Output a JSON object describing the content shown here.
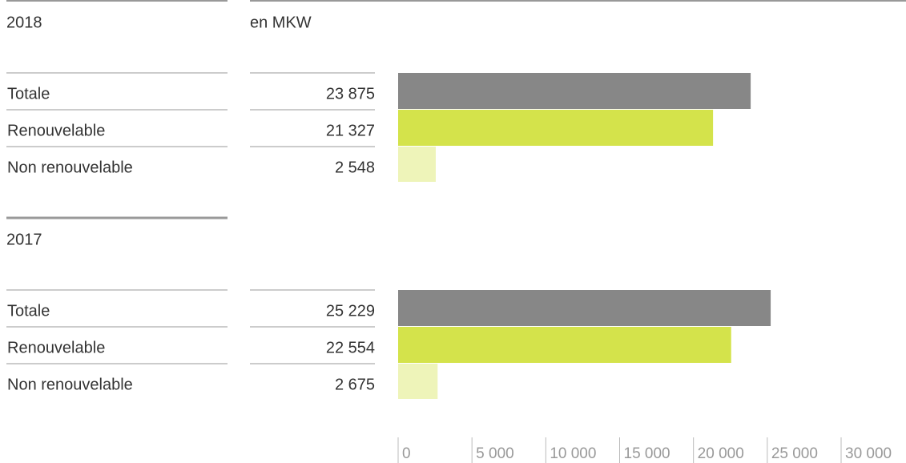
{
  "chart_data": {
    "type": "bar",
    "orientation": "horizontal",
    "unit": "en MKW",
    "categories": [
      "Totale",
      "Renouvelable",
      "Non renouvelable"
    ],
    "colors": [
      "#878787",
      "#d4e34b",
      "#eef4b9"
    ],
    "groups": [
      {
        "name": "2018",
        "values": [
          23875,
          21327,
          2548
        ],
        "value_labels": [
          "23 875",
          "21 327",
          "2 548"
        ]
      },
      {
        "name": "2017",
        "values": [
          25229,
          22554,
          2675
        ],
        "value_labels": [
          "25 229",
          "22 554",
          "2 675"
        ]
      }
    ],
    "xlim": [
      0,
      30000
    ],
    "xticks": [
      0,
      {
        "value": 5000,
        "label": "5 000"
      },
      {
        "value": 10000,
        "label": "10 000"
      },
      {
        "value": 15000,
        "label": "15 000"
      },
      {
        "value": 20000,
        "label": "20 000"
      },
      {
        "value": 25000,
        "label": "25 000"
      },
      {
        "value": 30000,
        "label": "30 000"
      }
    ]
  }
}
